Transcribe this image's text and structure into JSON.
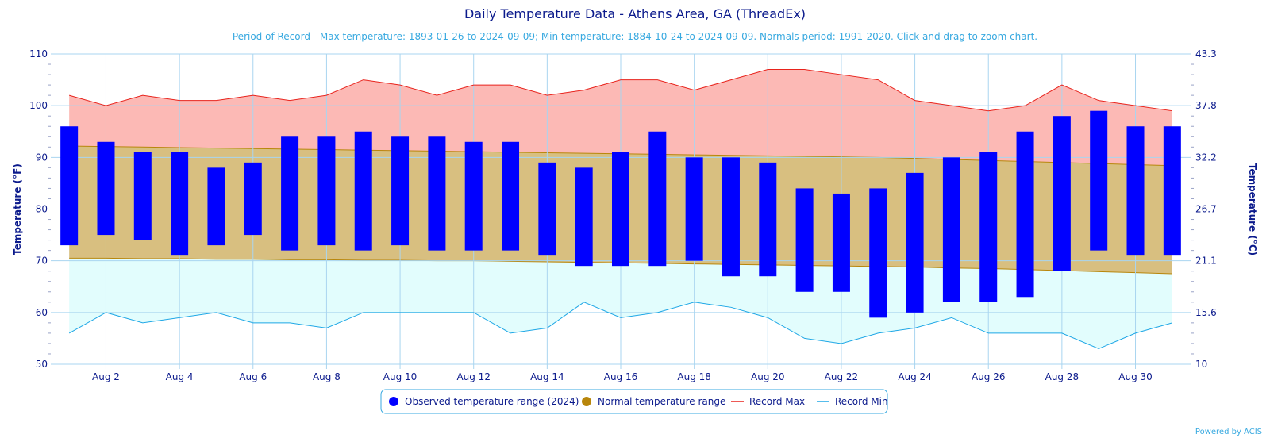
{
  "title": "Daily Temperature Data - Athens Area, GA (ThreadEx)",
  "subtitle": "Period of Record - Max temperature: 1893-01-26 to 2024-09-09; Min temperature: 1884-10-24 to 2024-09-09. Normals period: 1991-2020. Click and drag to zoom chart.",
  "credit": "Powered by ACIS",
  "colors": {
    "observed": "#0000ff",
    "normal_fill": "#d8bf80",
    "normal_line": "#b8860b",
    "record_max_fill": "#fcb9b5",
    "record_max_line": "#e8231c",
    "record_min_fill": "#e2fdfd",
    "record_min_line": "#1ea7e6",
    "grid": "#a9d5f0",
    "text": "#0b1a8c",
    "legend_border": "#38a9e0"
  },
  "chart_data": {
    "type": "bar",
    "x": [
      1,
      2,
      3,
      4,
      5,
      6,
      7,
      8,
      9,
      10,
      11,
      12,
      13,
      14,
      15,
      16,
      17,
      18,
      19,
      20,
      21,
      22,
      23,
      24,
      25,
      26,
      27,
      28,
      29,
      30,
      31
    ],
    "x_tick_labels": [
      "Aug 2",
      "Aug 4",
      "Aug 6",
      "Aug 8",
      "Aug 10",
      "Aug 12",
      "Aug 14",
      "Aug 16",
      "Aug 18",
      "Aug 20",
      "Aug 22",
      "Aug 24",
      "Aug 26",
      "Aug 28",
      "Aug 30"
    ],
    "x_tick_values": [
      2,
      4,
      6,
      8,
      10,
      12,
      14,
      16,
      18,
      20,
      22,
      24,
      26,
      28,
      30
    ],
    "ylabel_left": "Temperature (°F)",
    "ylabel_right": "Temperature (°C)",
    "ylim": [
      50,
      110
    ],
    "y_ticks_left": [
      "50",
      "60",
      "70",
      "80",
      "90",
      "100",
      "110"
    ],
    "y_ticks_right": [
      "10",
      "15.6",
      "21.1",
      "26.7",
      "32.2",
      "37.8",
      "43.3"
    ],
    "grid": true,
    "legend_position": "bottom",
    "series": [
      {
        "name": "Observed temperature range (2024)",
        "type": "columnrange",
        "low": [
          73,
          75,
          74,
          71,
          73,
          75,
          72,
          73,
          72,
          73,
          72,
          72,
          72,
          71,
          69,
          69,
          69,
          70,
          67,
          67,
          64,
          64,
          59,
          60,
          62,
          62,
          63,
          68,
          72,
          71,
          71
        ],
        "high": [
          96,
          93,
          91,
          91,
          88,
          89,
          94,
          94,
          95,
          94,
          94,
          93,
          93,
          89,
          88,
          91,
          95,
          90,
          90,
          89,
          84,
          83,
          84,
          87,
          90,
          91,
          95,
          98,
          99,
          96,
          96
        ]
      },
      {
        "name": "Normal temperature range",
        "type": "arearange",
        "low": [
          70.5,
          70.5,
          70.4,
          70.4,
          70.3,
          70.3,
          70.2,
          70.2,
          70.1,
          70.1,
          70.0,
          70.0,
          69.9,
          69.8,
          69.7,
          69.6,
          69.5,
          69.4,
          69.3,
          69.2,
          69.1,
          69.0,
          68.9,
          68.8,
          68.6,
          68.5,
          68.3,
          68.1,
          67.9,
          67.7,
          67.5
        ],
        "high": [
          92.2,
          92.1,
          92.0,
          91.9,
          91.8,
          91.7,
          91.6,
          91.5,
          91.4,
          91.3,
          91.2,
          91.1,
          91.0,
          90.9,
          90.8,
          90.7,
          90.6,
          90.5,
          90.4,
          90.3,
          90.2,
          90.1,
          90.0,
          89.8,
          89.6,
          89.4,
          89.2,
          89.0,
          88.8,
          88.6,
          88.4
        ]
      },
      {
        "name": "Record Max",
        "type": "line",
        "values": [
          102,
          100,
          102,
          101,
          101,
          102,
          101,
          102,
          105,
          104,
          102,
          104,
          104,
          102,
          103,
          105,
          105,
          103,
          105,
          107,
          107,
          106,
          105,
          101,
          100,
          99,
          100,
          104,
          101,
          100,
          99
        ]
      },
      {
        "name": "Record Min",
        "type": "line",
        "values": [
          56,
          60,
          58,
          59,
          60,
          58,
          58,
          57,
          60,
          60,
          60,
          60,
          56,
          57,
          62,
          59,
          60,
          62,
          61,
          59,
          55,
          54,
          56,
          57,
          59,
          56,
          56,
          56,
          53,
          56,
          58
        ]
      }
    ]
  }
}
